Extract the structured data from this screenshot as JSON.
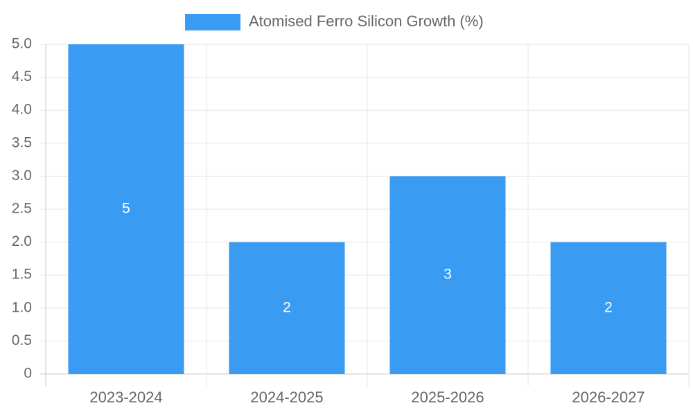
{
  "chart_data": {
    "type": "bar",
    "categories": [
      "2023-2024",
      "2024-2025",
      "2025-2026",
      "2026-2027"
    ],
    "series": [
      {
        "name": "Atomised Ferro Silicon Growth (%)",
        "values": [
          5,
          2,
          3,
          2
        ],
        "data_labels": [
          "5",
          "2",
          "3",
          "2"
        ],
        "color": "#399cf2"
      }
    ],
    "ylim": [
      0,
      5
    ],
    "y_ticks": [
      "0",
      "0.5",
      "1.0",
      "1.5",
      "2.0",
      "2.5",
      "3.0",
      "3.5",
      "4.0",
      "4.5",
      "5.0"
    ],
    "grid": true,
    "legend": "top-center",
    "colors": {
      "bar": "#399cf2",
      "grid": "#e5e5e5",
      "axis": "#c8c8c8",
      "tick_text": "#666666",
      "data_label": "#ffffff"
    }
  }
}
